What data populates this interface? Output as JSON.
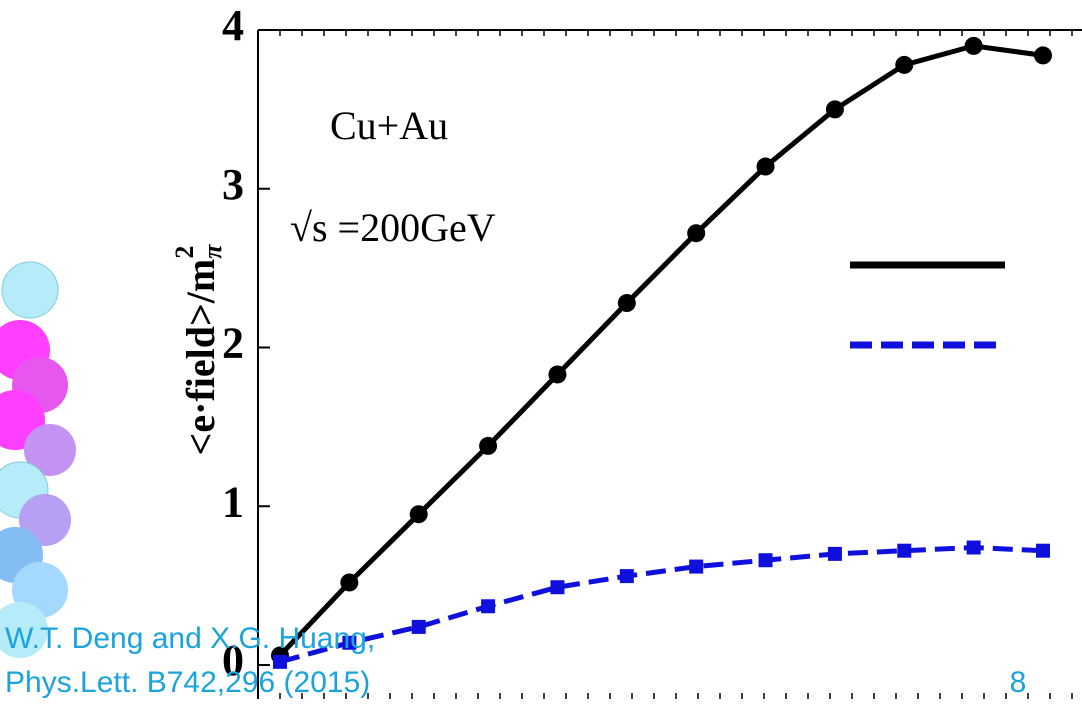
{
  "chart_data": {
    "type": "line",
    "ylabel": "<e·field>/m",
    "ylabel_sub": "π",
    "ylabel_sup": "2",
    "annotations": [
      "Cu+Au",
      "√s =200GeV"
    ],
    "categories": [
      null,
      null,
      null,
      null,
      null,
      null,
      null,
      null,
      null,
      null,
      null,
      null
    ],
    "series": [
      {
        "color": "#000000",
        "dash": false,
        "marker": "circle",
        "values": [
          0.06,
          0.52,
          0.95,
          1.38,
          1.83,
          2.28,
          2.72,
          3.14,
          3.5,
          3.78,
          3.9,
          3.84
        ]
      },
      {
        "color": "#1010dd",
        "dash": true,
        "marker": "square",
        "values": [
          0.02,
          0.14,
          0.24,
          0.37,
          0.49,
          0.56,
          0.62,
          0.66,
          0.7,
          0.72,
          0.74,
          0.72
        ]
      }
    ],
    "ylim": [
      0,
      4
    ],
    "yticks": [
      0,
      1,
      2,
      3,
      4
    ]
  },
  "citation": [
    "W.T. Deng and X.G. Huang,",
    "Phys.Lett. B742,296 (2015)"
  ],
  "page_number": "8"
}
